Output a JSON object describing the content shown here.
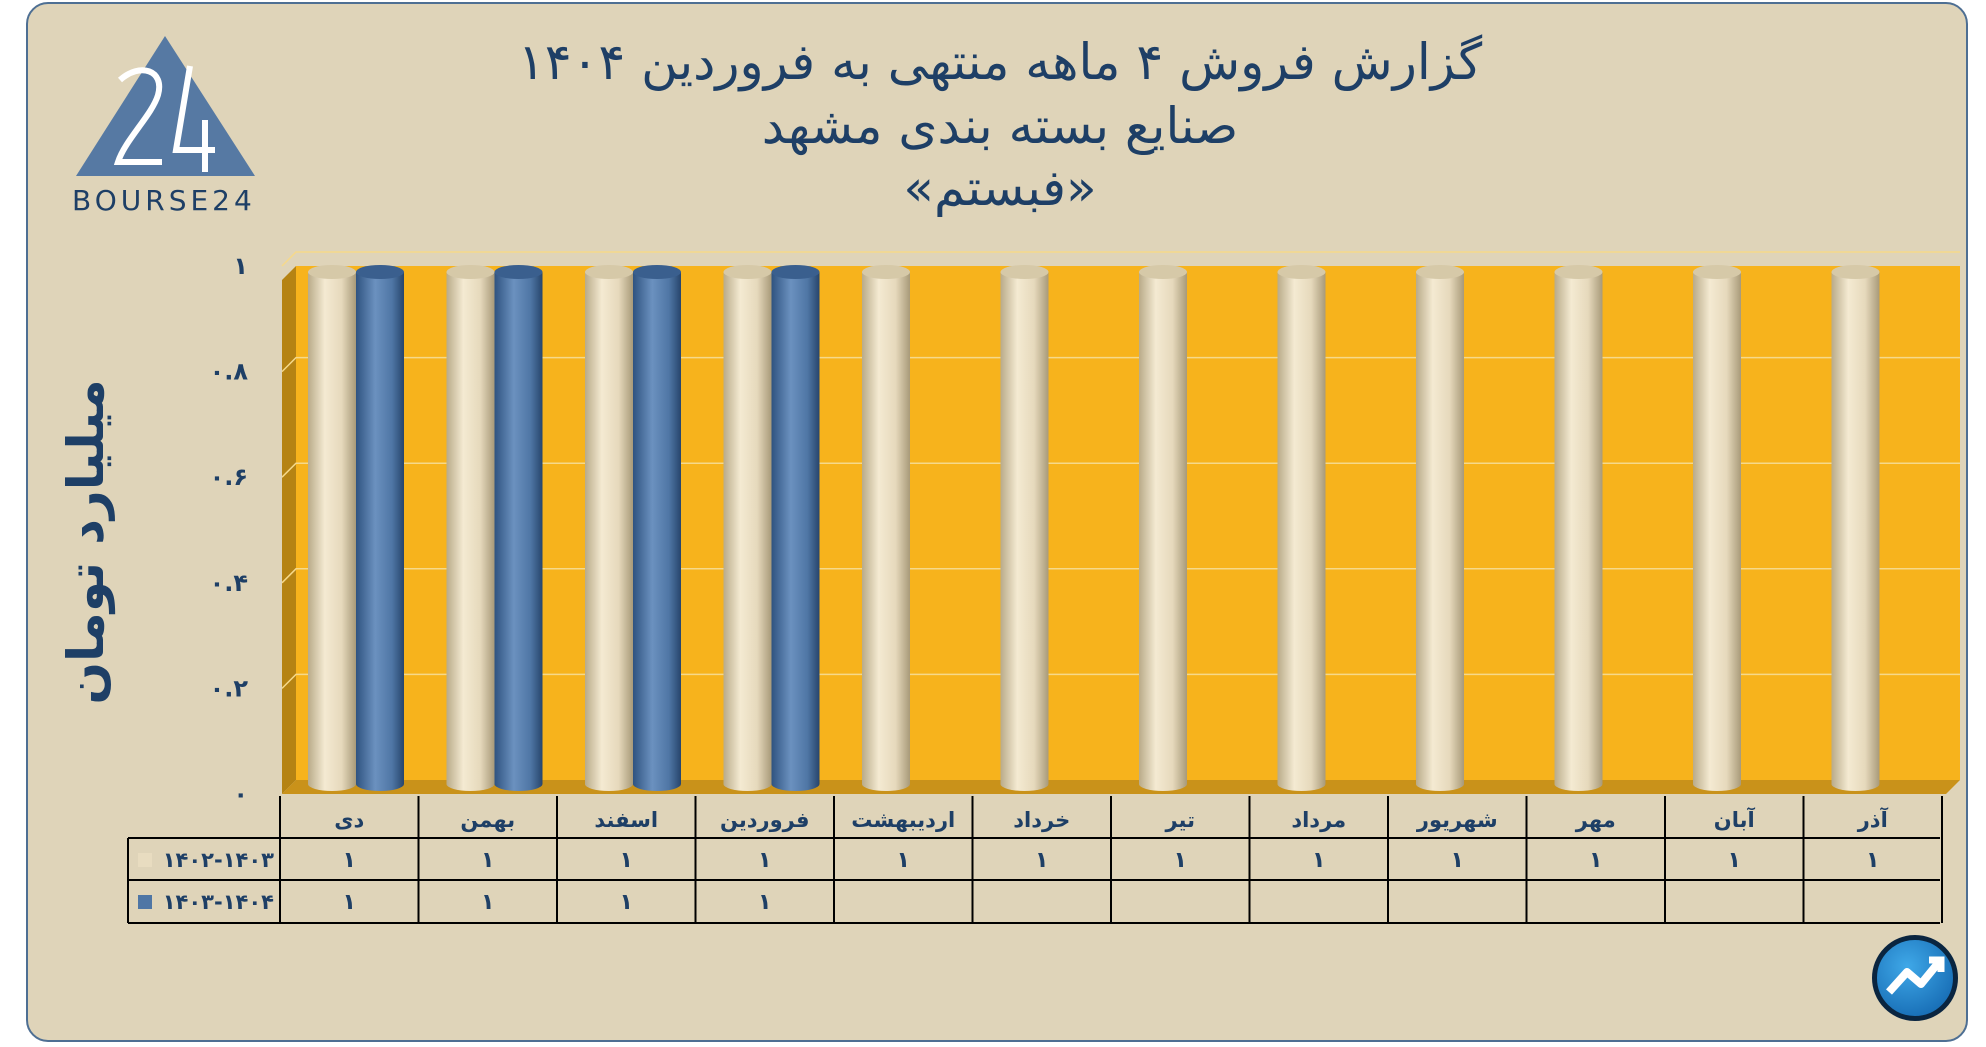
{
  "header": {
    "line1": "گزارش  فروش ۴ ماهه منتهی به فروردین ۱۴۰۴",
    "line2": "صنایع بسته بندی مشهد",
    "line3": "«فبستم»"
  },
  "logo": {
    "text": "BOURSE24",
    "icon": "bourse24-logo-icon"
  },
  "corner_icon": "trend-arrow-icon",
  "colors": {
    "background": "#dfd4b9",
    "plot": "#f7b31c",
    "series1": "#e8dcc0",
    "series2": "#4f76a5",
    "text": "#1e3f66"
  },
  "chart_data": {
    "type": "bar",
    "ylabel": "میلیارد تومان",
    "ylim": [
      0,
      1
    ],
    "yticks": [
      0,
      0.2,
      0.4,
      0.6,
      0.8,
      1
    ],
    "ytick_labels": [
      "۰",
      "۰.۲",
      "۰.۴",
      "۰.۶",
      "۰.۸",
      "۱"
    ],
    "categories": [
      "دی",
      "بهمن",
      "اسفند",
      "فروردین",
      "اردیبهشت",
      "خرداد",
      "تیر",
      "مرداد",
      "شهریور",
      "مهر",
      "آبان",
      "آذر"
    ],
    "series": [
      {
        "name": "۱۴۰۲-۱۴۰۳",
        "values": [
          1,
          1,
          1,
          1,
          1,
          1,
          1,
          1,
          1,
          1,
          1,
          1
        ],
        "labels": [
          "۱",
          "۱",
          "۱",
          "۱",
          "۱",
          "۱",
          "۱",
          "۱",
          "۱",
          "۱",
          "۱",
          "۱"
        ]
      },
      {
        "name": "۱۴۰۳-۱۴۰۴",
        "values": [
          1,
          1,
          1,
          1,
          null,
          null,
          null,
          null,
          null,
          null,
          null,
          null
        ],
        "labels": [
          "۱",
          "۱",
          "۱",
          "۱",
          "",
          "",
          "",
          "",
          "",
          "",
          "",
          ""
        ]
      }
    ],
    "legend": "data-table",
    "grid": true
  }
}
